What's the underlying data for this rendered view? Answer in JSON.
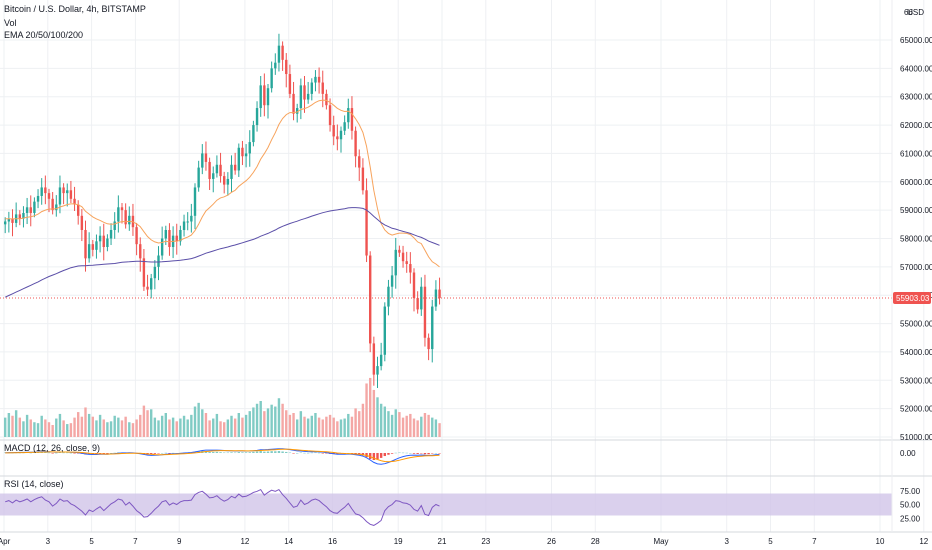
{
  "legend": {
    "title": "Bitcoin / U.S. Dollar, 4h, BITSTAMP",
    "vol": "Vol",
    "ema": "EMA 20/50/100/200",
    "macd": "MACD (12, 26, close, 9)",
    "rsi": "RSI (14, close)"
  },
  "colors": {
    "up": "#26a69a",
    "down": "#ef5350",
    "vol_up": "#80cbc4",
    "vol_down": "#f4a7a5",
    "ema_short": "#f7a35c",
    "ema_long": "#5b4fa8",
    "price_line": "#ef5350",
    "rsi_band": "#d1c4e9",
    "rsi_line": "#7e57c2",
    "macd_line": "#2962ff",
    "signal_line": "#ff9800",
    "grid": "#eef0f3"
  },
  "chart_data": {
    "type": "candlestick",
    "price_axis": {
      "currency": "USD",
      "ticks": [
        65000,
        64000,
        63000,
        62000,
        61000,
        60000,
        59000,
        58000,
        57000,
        56000,
        55000,
        54000,
        53000,
        52000,
        51000
      ],
      "tick_labels": [
        "65000.00",
        "64000.00",
        "63000.00",
        "62000.00",
        "61000.00",
        "60000.00",
        "59000.00",
        "58000.00",
        "57000.00",
        "56000.00",
        "55000.00",
        "54000.00",
        "53000.00",
        "52000.00",
        "51000.00"
      ],
      "top_partial_label": "66",
      "last_price": 55903.03,
      "last_price_label": "55903.03"
    },
    "macd_axis": {
      "ticks": [
        0
      ],
      "tick_labels": [
        "0.00"
      ]
    },
    "rsi_axis": {
      "ticks": [
        75,
        50,
        25
      ],
      "tick_labels": [
        "75.00",
        "50.00",
        "25.00"
      ],
      "band": [
        30,
        70
      ]
    },
    "time_axis": {
      "labels": [
        "Apr",
        "3",
        "5",
        "7",
        "9",
        "12",
        "14",
        "16",
        "19",
        "21",
        "23",
        "26",
        "28",
        "May",
        "3",
        "5",
        "7",
        "10",
        "12"
      ],
      "bars": [
        0,
        12,
        24,
        36,
        48,
        66,
        78,
        90,
        108,
        120,
        132,
        150,
        162,
        180,
        198,
        210,
        222,
        240,
        252
      ]
    },
    "close": [
      58600,
      58700,
      58550,
      58850,
      58700,
      58900,
      59100,
      58900,
      59300,
      59500,
      59800,
      59600,
      59400,
      59000,
      59200,
      59800,
      59600,
      59700,
      59400,
      59200,
      58800,
      58300,
      57300,
      57800,
      57600,
      57900,
      58100,
      57700,
      58000,
      58300,
      58600,
      59100,
      59000,
      58500,
      58800,
      58400,
      57800,
      57300,
      56300,
      56200,
      56600,
      57000,
      57400,
      58000,
      58300,
      57700,
      58100,
      57900,
      58300,
      58600,
      58600,
      58800,
      59800,
      60500,
      61000,
      60700,
      60100,
      60300,
      60600,
      60200,
      59900,
      60100,
      60600,
      60400,
      61200,
      60900,
      61000,
      61400,
      62000,
      62600,
      63400,
      62700,
      63300,
      64000,
      64200,
      64800,
      64300,
      63800,
      63100,
      62400,
      62600,
      63400,
      62900,
      63100,
      63500,
      63700,
      63500,
      63100,
      62700,
      62000,
      61600,
      61500,
      61800,
      62100,
      62600,
      61800,
      60900,
      60500,
      59700,
      57400,
      54300,
      53200,
      53500,
      53900,
      55600,
      56300,
      56700,
      57600,
      57500,
      57200,
      57100,
      56800,
      55900,
      55500,
      56300,
      54500,
      54100,
      55600,
      56200,
      55903
    ],
    "ema_short": [
      58700,
      58700,
      58690,
      58700,
      58700,
      58720,
      58750,
      58770,
      58800,
      58860,
      58950,
      59000,
      59040,
      59040,
      59050,
      59110,
      59150,
      59200,
      59220,
      59220,
      59190,
      59120,
      58960,
      58860,
      58760,
      58690,
      58640,
      58570,
      58520,
      58500,
      58510,
      58560,
      58600,
      58590,
      58610,
      58590,
      58520,
      58420,
      58240,
      58070,
      57950,
      57880,
      57840,
      57860,
      57900,
      57880,
      57900,
      57900,
      57940,
      58000,
      58050,
      58120,
      58280,
      58500,
      58760,
      58970,
      59090,
      59210,
      59350,
      59430,
      59470,
      59530,
      59630,
      59700,
      59840,
      59940,
      60040,
      60160,
      60330,
      60540,
      60800,
      60990,
      61210,
      61480,
      61730,
      62020,
      62230,
      62370,
      62440,
      62440,
      62460,
      62550,
      62580,
      62630,
      62710,
      62800,
      62860,
      62880,
      62870,
      62800,
      62700,
      62590,
      62520,
      62480,
      62490,
      62400,
      62220,
      62010,
      61740,
      61260,
      60520,
      59700,
      59050,
      58530,
      58300,
      58180,
      58120,
      58160,
      58190,
      58190,
      58180,
      58140,
      58020,
      57880,
      57820,
      57590,
      57350,
      57180,
      57100,
      57000
    ],
    "ema_long": [
      55930,
      55990,
      56050,
      56110,
      56170,
      56230,
      56290,
      56350,
      56410,
      56470,
      56540,
      56600,
      56660,
      56710,
      56760,
      56820,
      56870,
      56920,
      56970,
      57000,
      57030,
      57040,
      57040,
      57050,
      57060,
      57070,
      57080,
      57090,
      57100,
      57110,
      57120,
      57140,
      57160,
      57170,
      57180,
      57190,
      57200,
      57200,
      57190,
      57180,
      57170,
      57170,
      57170,
      57180,
      57190,
      57200,
      57210,
      57220,
      57230,
      57250,
      57270,
      57290,
      57330,
      57380,
      57430,
      57480,
      57520,
      57560,
      57600,
      57640,
      57670,
      57700,
      57740,
      57770,
      57810,
      57850,
      57890,
      57930,
      57970,
      58020,
      58080,
      58130,
      58180,
      58240,
      58300,
      58370,
      58430,
      58480,
      58530,
      58570,
      58610,
      58660,
      58700,
      58740,
      58790,
      58830,
      58870,
      58910,
      58940,
      58970,
      58990,
      59010,
      59030,
      59050,
      59080,
      59090,
      59090,
      59080,
      59060,
      59000,
      58900,
      58780,
      58670,
      58560,
      58480,
      58420,
      58360,
      58330,
      58290,
      58250,
      58220,
      58180,
      58130,
      58080,
      58040,
      57980,
      57910,
      57860,
      57810,
      57760
    ],
    "volume": [
      2100,
      2600,
      2300,
      2900,
      2100,
      1700,
      2400,
      1900,
      1600,
      1500,
      2300,
      1900,
      1600,
      1300,
      2000,
      2500,
      1800,
      1400,
      1500,
      2100,
      2700,
      2200,
      3200,
      2500,
      2200,
      1800,
      2400,
      1900,
      1600,
      1700,
      2300,
      2100,
      1800,
      2200,
      1600,
      1500,
      1900,
      2400,
      3400,
      2900,
      3000,
      2100,
      1800,
      2300,
      2600,
      1900,
      2100,
      1700,
      2000,
      2300,
      1900,
      2400,
      3300,
      3700,
      3000,
      2600,
      1800,
      2000,
      2500,
      1700,
      1600,
      1900,
      2300,
      2000,
      2600,
      2100,
      2400,
      2800,
      3200,
      3600,
      3900,
      2800,
      3100,
      3500,
      3300,
      4200,
      3600,
      2900,
      2400,
      2600,
      1900,
      2800,
      2200,
      2000,
      2300,
      2600,
      2100,
      1900,
      2200,
      2400,
      2100,
      1700,
      1900,
      2000,
      2500,
      2200,
      3100,
      2800,
      3600,
      5800,
      6400,
      5100,
      4300,
      3600,
      3300,
      2800,
      2400,
      3000,
      2700,
      2100,
      2300,
      2500,
      2000,
      1800,
      2200,
      2600,
      2400,
      2100,
      1900,
      1500
    ],
    "macd_hist": [
      40,
      30,
      20,
      30,
      20,
      30,
      40,
      20,
      50,
      60,
      70,
      50,
      30,
      -10,
      10,
      50,
      30,
      30,
      10,
      -10,
      -40,
      -70,
      -130,
      -90,
      -70,
      -40,
      -20,
      -40,
      -20,
      0,
      20,
      50,
      40,
      0,
      20,
      -10,
      -50,
      -80,
      -140,
      -150,
      -110,
      -70,
      -40,
      0,
      20,
      -10,
      10,
      0,
      20,
      40,
      40,
      50,
      110,
      150,
      170,
      140,
      90,
      90,
      100,
      70,
      40,
      40,
      60,
      40,
      80,
      60,
      60,
      70,
      100,
      130,
      170,
      120,
      130,
      160,
      150,
      170,
      130,
      90,
      40,
      -10,
      0,
      40,
      10,
      10,
      30,
      40,
      20,
      -10,
      -40,
      -80,
      -100,
      -90,
      -60,
      -30,
      0,
      -60,
      -120,
      -150,
      -200,
      -350,
      -520,
      -600,
      -530,
      -420,
      -260,
      -150,
      -60,
      20,
      40,
      30,
      20,
      0,
      -60,
      -80,
      -30,
      -110,
      -110,
      -40,
      0,
      -10
    ],
    "rsi": [
      55,
      57,
      53,
      58,
      55,
      57,
      60,
      55,
      59,
      62,
      64,
      58,
      55,
      47,
      52,
      60,
      56,
      57,
      51,
      48,
      43,
      38,
      31,
      40,
      37,
      42,
      46,
      39,
      45,
      51,
      55,
      60,
      58,
      49,
      54,
      47,
      39,
      34,
      27,
      28,
      34,
      41,
      47,
      55,
      57,
      49,
      53,
      50,
      55,
      57,
      57,
      58,
      68,
      72,
      74,
      69,
      62,
      63,
      66,
      60,
      56,
      59,
      65,
      62,
      69,
      64,
      65,
      68,
      72,
      74,
      77,
      67,
      72,
      76,
      74,
      77,
      68,
      61,
      53,
      45,
      47,
      58,
      50,
      53,
      58,
      60,
      57,
      51,
      46,
      39,
      35,
      34,
      40,
      45,
      52,
      42,
      33,
      31,
      26,
      19,
      14,
      12,
      16,
      21,
      39,
      46,
      50,
      57,
      56,
      53,
      52,
      49,
      41,
      38,
      48,
      32,
      30,
      45,
      50,
      47
    ]
  }
}
